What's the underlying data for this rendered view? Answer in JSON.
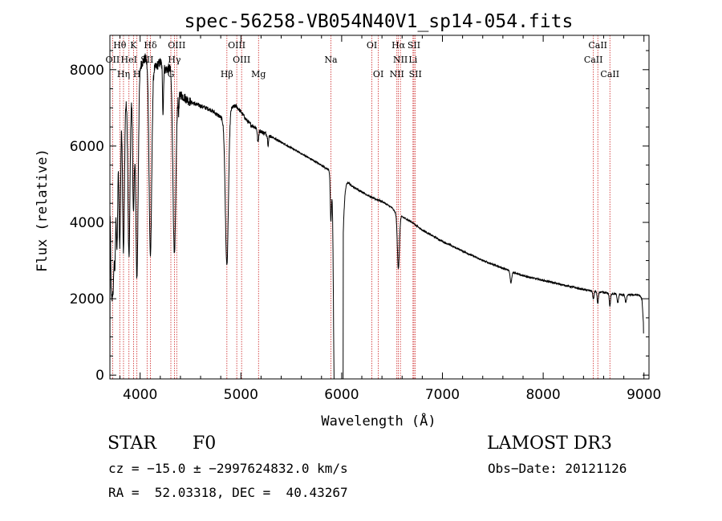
{
  "chart_data": {
    "type": "line",
    "title": "spec-56258-VB054N40V1_sp14-054.fits",
    "xlabel": "Wavelength (Å)",
    "ylabel": "Flux (relative)",
    "xlim": [
      3700,
      9050
    ],
    "ylim": [
      -100,
      8900
    ],
    "xticks": [
      4000,
      5000,
      6000,
      7000,
      8000,
      9000
    ],
    "yticks": [
      0,
      2000,
      4000,
      6000,
      8000
    ],
    "xtick_labels": [
      "4000",
      "5000",
      "6000",
      "7000",
      "8000",
      "9000"
    ],
    "ytick_labels": [
      "0",
      "2000",
      "4000",
      "6000",
      "8000"
    ],
    "line_color": "#000000",
    "marker_color": "#cc2222",
    "continuum": [
      [
        3700,
        0
      ],
      [
        3702,
        4600
      ],
      [
        3710,
        4300
      ],
      [
        3740,
        5200
      ],
      [
        3780,
        6400
      ],
      [
        3820,
        7100
      ],
      [
        3860,
        7200
      ],
      [
        3900,
        7300
      ],
      [
        3950,
        7600
      ],
      [
        4000,
        8100
      ],
      [
        4050,
        8300
      ],
      [
        4100,
        8150
      ],
      [
        4150,
        8050
      ],
      [
        4200,
        8200
      ],
      [
        4250,
        8000
      ],
      [
        4300,
        8050
      ],
      [
        4350,
        7500
      ],
      [
        4400,
        7350
      ],
      [
        4450,
        7250
      ],
      [
        4500,
        7150
      ],
      [
        4600,
        7050
      ],
      [
        4700,
        6950
      ],
      [
        4800,
        6750
      ],
      [
        4850,
        6600
      ],
      [
        4900,
        7000
      ],
      [
        4950,
        7050
      ],
      [
        5000,
        6900
      ],
      [
        5050,
        6700
      ],
      [
        5100,
        6550
      ],
      [
        5150,
        6480
      ],
      [
        5200,
        6380
      ],
      [
        5300,
        6250
      ],
      [
        5400,
        6100
      ],
      [
        5500,
        5950
      ],
      [
        5600,
        5800
      ],
      [
        5700,
        5650
      ],
      [
        5800,
        5500
      ],
      [
        5850,
        5400
      ],
      [
        5900,
        5350
      ],
      [
        6000,
        5250
      ],
      [
        6100,
        4950
      ],
      [
        6200,
        4800
      ],
      [
        6300,
        4650
      ],
      [
        6400,
        4550
      ],
      [
        6500,
        4380
      ],
      [
        6550,
        4200
      ],
      [
        6600,
        4150
      ],
      [
        6700,
        4000
      ],
      [
        6800,
        3800
      ],
      [
        6900,
        3650
      ],
      [
        7000,
        3500
      ],
      [
        7200,
        3250
      ],
      [
        7400,
        3000
      ],
      [
        7600,
        2800
      ],
      [
        7800,
        2600
      ],
      [
        8000,
        2480
      ],
      [
        8200,
        2360
      ],
      [
        8400,
        2240
      ],
      [
        8600,
        2160
      ],
      [
        8800,
        2100
      ],
      [
        8950,
        2100
      ],
      [
        8980,
        2000
      ],
      [
        9000,
        1100
      ]
    ],
    "absorption": [
      {
        "center": 3712,
        "depth": 1500,
        "width": 6
      },
      {
        "center": 3722,
        "depth": 2000,
        "width": 6
      },
      {
        "center": 3734,
        "depth": 2300,
        "width": 6
      },
      {
        "center": 3750,
        "depth": 2600,
        "width": 7
      },
      {
        "center": 3771,
        "depth": 2800,
        "width": 7
      },
      {
        "center": 3798,
        "depth": 3300,
        "width": 8
      },
      {
        "center": 3835,
        "depth": 3900,
        "width": 9
      },
      {
        "center": 3889,
        "depth": 4200,
        "width": 10
      },
      {
        "center": 3934,
        "depth": 3200,
        "width": 8
      },
      {
        "center": 3968,
        "depth": 5200,
        "width": 12
      },
      {
        "center": 4102,
        "depth": 5000,
        "width": 13
      },
      {
        "center": 4227,
        "depth": 1200,
        "width": 5
      },
      {
        "center": 4340,
        "depth": 4500,
        "width": 14
      },
      {
        "center": 4383,
        "depth": 500,
        "width": 4
      },
      {
        "center": 4861,
        "depth": 3800,
        "width": 15
      },
      {
        "center": 5170,
        "depth": 350,
        "width": 6
      },
      {
        "center": 5270,
        "depth": 250,
        "width": 5
      },
      {
        "center": 5893,
        "depth": 1200,
        "width": 6
      },
      {
        "center": 5930,
        "depth": 4800,
        "width": 10
      },
      {
        "center": 5970,
        "depth": 5600,
        "width": 28
      },
      {
        "center": 6563,
        "depth": 1400,
        "width": 10
      },
      {
        "center": 7680,
        "depth": 300,
        "width": 8
      },
      {
        "center": 8498,
        "depth": 220,
        "width": 6
      },
      {
        "center": 8542,
        "depth": 320,
        "width": 6
      },
      {
        "center": 8662,
        "depth": 340,
        "width": 6
      },
      {
        "center": 8740,
        "depth": 220,
        "width": 7
      },
      {
        "center": 8820,
        "depth": 200,
        "width": 7
      }
    ],
    "lines": [
      {
        "label": "Hθ",
        "wavelength": 3798,
        "row": 0
      },
      {
        "label": "K",
        "wavelength": 3934,
        "row": 0
      },
      {
        "label": "Hδ",
        "wavelength": 4102,
        "row": 0
      },
      {
        "label": "OIII",
        "wavelength": 4363,
        "row": 0
      },
      {
        "label": "OIII",
        "wavelength": 4959,
        "row": 0
      },
      {
        "label": "OI",
        "wavelength": 6300,
        "row": 0
      },
      {
        "label": "Hα",
        "wavelength": 6563,
        "row": 0
      },
      {
        "label": "SII",
        "wavelength": 6717,
        "row": 0
      },
      {
        "label": "CaII",
        "wavelength": 8542,
        "row": 0
      },
      {
        "label": "OII",
        "wavelength": 3727,
        "row": 1
      },
      {
        "label": "HeI",
        "wavelength": 3889,
        "row": 1
      },
      {
        "label": "SII",
        "wavelength": 4069,
        "row": 1
      },
      {
        "label": "Hγ",
        "wavelength": 4340,
        "row": 1
      },
      {
        "label": "OIII",
        "wavelength": 5007,
        "row": 1
      },
      {
        "label": "Na",
        "wavelength": 5893,
        "row": 1
      },
      {
        "label": "NII",
        "wavelength": 6583,
        "row": 1
      },
      {
        "label": "Li",
        "wavelength": 6708,
        "row": 1
      },
      {
        "label": "CaII",
        "wavelength": 8498,
        "row": 1
      },
      {
        "label": "Hη",
        "wavelength": 3835,
        "row": 2
      },
      {
        "label": "H",
        "wavelength": 3968,
        "row": 2
      },
      {
        "label": "G",
        "wavelength": 4305,
        "row": 2
      },
      {
        "label": "Hβ",
        "wavelength": 4861,
        "row": 2
      },
      {
        "label": "Mg",
        "wavelength": 5175,
        "row": 2
      },
      {
        "label": "OI",
        "wavelength": 6364,
        "row": 2
      },
      {
        "label": "NII",
        "wavelength": 6548,
        "row": 2
      },
      {
        "label": "SII",
        "wavelength": 6731,
        "row": 2
      },
      {
        "label": "CaII",
        "wavelength": 8662,
        "row": 2
      }
    ]
  },
  "info": {
    "class": "STAR",
    "subclass": "F0",
    "survey": "LAMOST DR3",
    "cz": "cz = −15.0 ± −2997624832.0 km/s",
    "obs_date": "Obs−Date: 20121126",
    "radec": "RA =  52.03318, DEC =  40.43267"
  }
}
